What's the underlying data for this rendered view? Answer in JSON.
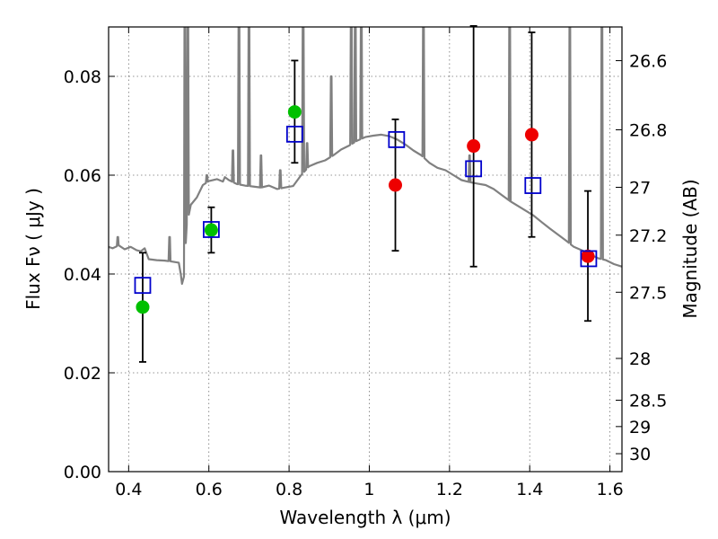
{
  "chart_data": {
    "type": "scatter",
    "xlabel": "Wavelength  λ (μm)",
    "ylabel": "Flux  Fν  ( μJy )",
    "y2label": "Magnitude (AB)",
    "xlim": [
      0.35,
      1.63
    ],
    "ylim": [
      0.0,
      0.09
    ],
    "grid": true,
    "x_ticks": [
      0.4,
      0.6,
      0.8,
      1.0,
      1.2,
      1.4,
      1.6
    ],
    "x_tick_labels": [
      "0.4",
      "0.6",
      "0.8",
      "1",
      "1.2",
      "1.4",
      "1.6"
    ],
    "y_ticks": [
      0.0,
      0.02,
      0.04,
      0.06,
      0.08
    ],
    "y_tick_labels": [
      "0.00",
      "0.02",
      "0.04",
      "0.06",
      "0.08"
    ],
    "mag_ticks": [
      {
        "label": "26.6",
        "mag": 26.6
      },
      {
        "label": "26.8",
        "mag": 26.8
      },
      {
        "label": "27",
        "mag": 27.0
      },
      {
        "label": "27.2",
        "mag": 27.2
      },
      {
        "label": "27.5",
        "mag": 27.5
      },
      {
        "label": "28",
        "mag": 28.0
      },
      {
        "label": "28.5",
        "mag": 28.5
      },
      {
        "label": "29",
        "mag": 29.0
      },
      {
        "label": "30",
        "mag": 30.0
      }
    ],
    "colors": {
      "sed": "#808080",
      "observed_a": "#00c000",
      "observed_b": "#ee0000",
      "model": "#0000cc",
      "errorbar": "#000000"
    },
    "series": [
      {
        "marker": "circle",
        "color": "#00c000",
        "points": [
          {
            "x": 0.435,
            "y": 0.0333
          },
          {
            "x": 0.606,
            "y": 0.0489
          },
          {
            "x": 0.814,
            "y": 0.0728
          }
        ]
      },
      {
        "marker": "circle",
        "color": "#ee0000",
        "points": [
          {
            "x": 1.065,
            "y": 0.058
          },
          {
            "x": 1.26,
            "y": 0.0659
          },
          {
            "x": 1.405,
            "y": 0.0682
          },
          {
            "x": 1.545,
            "y": 0.0436
          }
        ]
      },
      {
        "marker": "square",
        "color": "#0000cc",
        "points": [
          {
            "x": 0.435,
            "y": 0.0377
          },
          {
            "x": 0.606,
            "y": 0.049
          },
          {
            "x": 0.814,
            "y": 0.0683
          },
          {
            "x": 1.068,
            "y": 0.0672
          },
          {
            "x": 1.26,
            "y": 0.0613
          },
          {
            "x": 1.408,
            "y": 0.0579
          },
          {
            "x": 1.547,
            "y": 0.0431
          }
        ]
      }
    ],
    "error_bars": [
      {
        "x": 0.435,
        "low": 0.0222,
        "high": 0.0443
      },
      {
        "x": 0.606,
        "low": 0.0443,
        "high": 0.0535
      },
      {
        "x": 0.814,
        "low": 0.0625,
        "high": 0.0832
      },
      {
        "x": 1.065,
        "low": 0.0447,
        "high": 0.0713
      },
      {
        "x": 1.26,
        "low": 0.0415,
        "high": 0.0902
      },
      {
        "x": 1.405,
        "low": 0.0475,
        "high": 0.0889
      },
      {
        "x": 1.545,
        "low": 0.0305,
        "high": 0.0568
      }
    ],
    "sed_continuum": [
      [
        0.35,
        0.0455
      ],
      [
        0.36,
        0.0452
      ],
      [
        0.375,
        0.0458
      ],
      [
        0.39,
        0.045
      ],
      [
        0.405,
        0.0455
      ],
      [
        0.42,
        0.0448
      ],
      [
        0.43,
        0.0446
      ],
      [
        0.44,
        0.0452
      ],
      [
        0.45,
        0.043
      ],
      [
        0.47,
        0.0428
      ],
      [
        0.49,
        0.0427
      ],
      [
        0.51,
        0.0425
      ],
      [
        0.525,
        0.0423
      ],
      [
        0.53,
        0.04
      ],
      [
        0.533,
        0.038
      ],
      [
        0.538,
        0.0395
      ],
      [
        0.545,
        0.05
      ],
      [
        0.555,
        0.054
      ],
      [
        0.57,
        0.0555
      ],
      [
        0.585,
        0.058
      ],
      [
        0.6,
        0.0588
      ],
      [
        0.62,
        0.0592
      ],
      [
        0.635,
        0.0587
      ],
      [
        0.64,
        0.0596
      ],
      [
        0.65,
        0.059
      ],
      [
        0.67,
        0.0582
      ],
      [
        0.69,
        0.0579
      ],
      [
        0.71,
        0.0577
      ],
      [
        0.73,
        0.0575
      ],
      [
        0.75,
        0.0579
      ],
      [
        0.77,
        0.0572
      ],
      [
        0.79,
        0.0575
      ],
      [
        0.81,
        0.0578
      ],
      [
        0.83,
        0.06
      ],
      [
        0.85,
        0.0618
      ],
      [
        0.87,
        0.0625
      ],
      [
        0.89,
        0.063
      ],
      [
        0.91,
        0.064
      ],
      [
        0.93,
        0.0652
      ],
      [
        0.95,
        0.066
      ],
      [
        0.97,
        0.067
      ],
      [
        0.99,
        0.0677
      ],
      [
        1.01,
        0.068
      ],
      [
        1.03,
        0.0682
      ],
      [
        1.05,
        0.0679
      ],
      [
        1.07,
        0.0672
      ],
      [
        1.09,
        0.0662
      ],
      [
        1.11,
        0.065
      ],
      [
        1.13,
        0.064
      ],
      [
        1.15,
        0.0625
      ],
      [
        1.17,
        0.0615
      ],
      [
        1.19,
        0.061
      ],
      [
        1.21,
        0.06
      ],
      [
        1.23,
        0.059
      ],
      [
        1.25,
        0.0586
      ],
      [
        1.27,
        0.0583
      ],
      [
        1.29,
        0.058
      ],
      [
        1.31,
        0.0572
      ],
      [
        1.33,
        0.056
      ],
      [
        1.35,
        0.0548
      ],
      [
        1.37,
        0.0538
      ],
      [
        1.39,
        0.0528
      ],
      [
        1.41,
        0.0518
      ],
      [
        1.43,
        0.0505
      ],
      [
        1.45,
        0.0492
      ],
      [
        1.47,
        0.048
      ],
      [
        1.49,
        0.0468
      ],
      [
        1.51,
        0.0455
      ],
      [
        1.53,
        0.0448
      ],
      [
        1.55,
        0.044
      ],
      [
        1.57,
        0.0432
      ],
      [
        1.59,
        0.0428
      ],
      [
        1.61,
        0.042
      ],
      [
        1.63,
        0.0415
      ]
    ],
    "sed_emission_lines": [
      {
        "x": 0.373,
        "peak": 0.0475
      },
      {
        "x": 0.502,
        "peak": 0.0475
      },
      {
        "x": 0.54,
        "peak": 0.096
      },
      {
        "x": 0.5475,
        "peak": 0.096
      },
      {
        "x": 0.595,
        "peak": 0.06
      },
      {
        "x": 0.66,
        "peak": 0.065
      },
      {
        "x": 0.675,
        "peak": 0.096
      },
      {
        "x": 0.7,
        "peak": 0.096
      },
      {
        "x": 0.73,
        "peak": 0.064
      },
      {
        "x": 0.778,
        "peak": 0.061
      },
      {
        "x": 0.835,
        "peak": 0.096
      },
      {
        "x": 0.845,
        "peak": 0.0665
      },
      {
        "x": 0.905,
        "peak": 0.08
      },
      {
        "x": 0.955,
        "peak": 0.096
      },
      {
        "x": 0.965,
        "peak": 0.096
      },
      {
        "x": 0.98,
        "peak": 0.096
      },
      {
        "x": 1.135,
        "peak": 0.096
      },
      {
        "x": 1.25,
        "peak": 0.064
      },
      {
        "x": 1.35,
        "peak": 0.096
      },
      {
        "x": 1.5,
        "peak": 0.096
      },
      {
        "x": 1.58,
        "peak": 0.096
      }
    ]
  }
}
